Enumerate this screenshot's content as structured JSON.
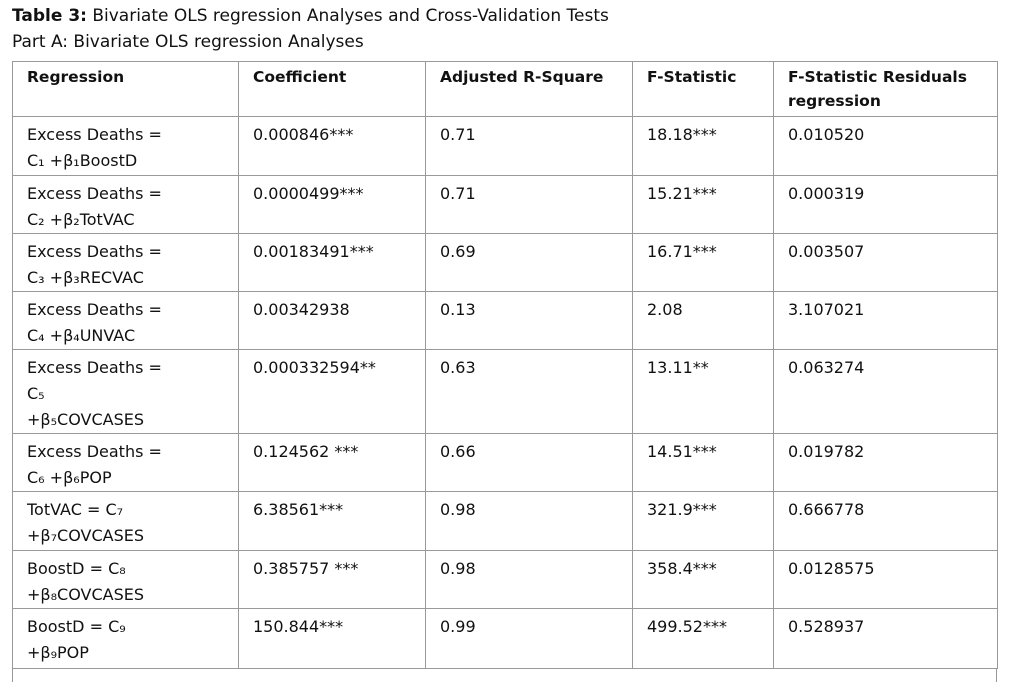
{
  "header": {
    "title_label": "Table 3:",
    "title_text": "Bivariate OLS regression Analyses and Cross-Validation Tests",
    "subtitle": "Part A: Bivariate OLS regression Analyses"
  },
  "table": {
    "columns": [
      "Regression",
      "Coefficient",
      "Adjusted R-Square",
      "F-Statistic",
      [
        "F-Statistic Residuals",
        "regression"
      ]
    ],
    "rows": [
      [
        [
          "Excess Deaths =",
          "C₁ +β₁BoostD"
        ],
        "0.000846***",
        "0.71",
        "18.18***",
        "0.010520"
      ],
      [
        [
          "Excess Deaths =",
          "C₂ +β₂TotVAC"
        ],
        "0.0000499***",
        "0.71",
        "15.21***",
        "0.000319"
      ],
      [
        [
          "Excess Deaths =",
          "C₃ +β₃RECVAC"
        ],
        "0.00183491***",
        "0.69",
        "16.71***",
        "0.003507"
      ],
      [
        [
          "Excess Deaths =",
          "C₄ +β₄UNVAC"
        ],
        "0.00342938",
        "0.13",
        "2.08",
        "3.107021"
      ],
      [
        [
          "Excess Deaths =",
          "C₅",
          "+β₅COVCASES"
        ],
        "0.000332594**",
        "0.63",
        "13.11**",
        "0.063274"
      ],
      [
        [
          "Excess Deaths =",
          "C₆ +β₆POP"
        ],
        "0.124562 ***",
        "0.66",
        "14.51***",
        "0.019782"
      ],
      [
        [
          "TotVAC = C₇",
          "+β₇COVCASES"
        ],
        "6.38561***",
        "0.98",
        "321.9***",
        "0.666778"
      ],
      [
        [
          "BoostD = C₈",
          "+β₈COVCASES"
        ],
        "0.385757 ***",
        "0.98",
        "358.4***",
        "0.0128575"
      ],
      [
        [
          "BoostD = C₉",
          "+β₉POP"
        ],
        "150.844***",
        "0.99",
        "499.52***",
        "0.528937"
      ]
    ]
  }
}
